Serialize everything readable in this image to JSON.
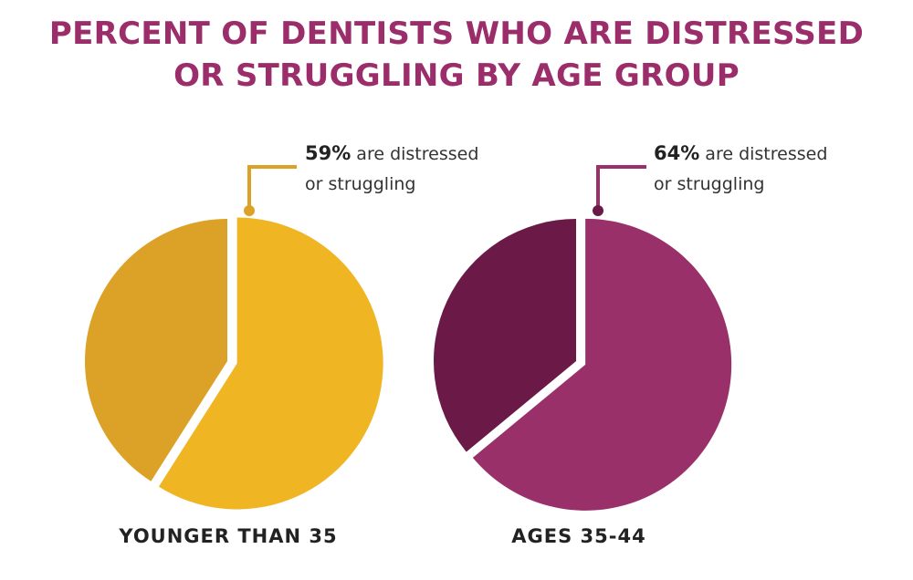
{
  "title": {
    "line1": "PERCENT OF DENTISTS WHO ARE DISTRESSED",
    "line2": "OR STRUGGLING BY AGE GROUP"
  },
  "colors": {
    "title": "#9b2d6b",
    "chart1_main": "#efb523",
    "chart1_rest": "#dca227",
    "chart2_main": "#99306a",
    "chart2_rest": "#6b1a48"
  },
  "chart_data": [
    {
      "type": "pie",
      "categories": [
        "are distressed or struggling",
        "other"
      ],
      "values": [
        59,
        41
      ],
      "callout": {
        "pct": "59%",
        "text1": " are distressed",
        "text2": "or struggling"
      },
      "label": "YOUNGER THAN 35"
    },
    {
      "type": "pie",
      "categories": [
        "are distressed or struggling",
        "other"
      ],
      "values": [
        64,
        36
      ],
      "callout": {
        "pct": "64%",
        "text1": " are distressed",
        "text2": "or struggling"
      },
      "label": "AGES 35-44"
    }
  ]
}
